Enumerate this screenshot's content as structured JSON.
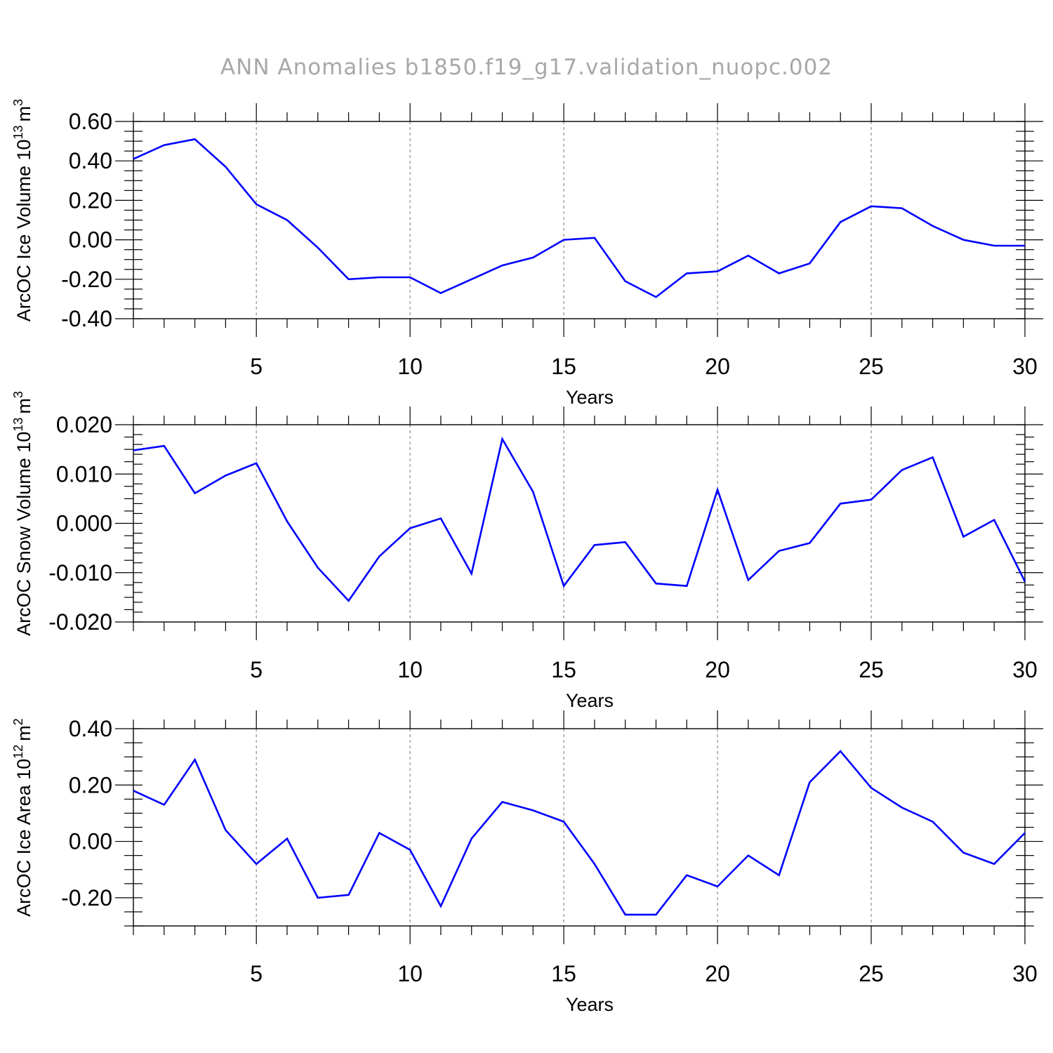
{
  "title": "ANN Anomalies b1850.f19_g17.validation_nuopc.002",
  "line_color": "#0000ff",
  "chart_data": [
    {
      "type": "line",
      "ylabel": "ArcOC Ice Volume 10",
      "ylabel_exp": "13",
      "ylabel_unit": "m",
      "ylabel_unit_exp": "3",
      "xlabel": "Years",
      "xlim": [
        1,
        30
      ],
      "ylim": [
        -0.4,
        0.6
      ],
      "yticks": [
        -0.4,
        -0.2,
        0.0,
        0.2,
        0.4,
        0.6
      ],
      "ytick_labels": [
        "-0.40",
        "-0.20",
        "0.00",
        "0.20",
        "0.40",
        "0.60"
      ],
      "ymirror_max": 0.6,
      "ymirror_minor": 0.05,
      "xticks": [
        5,
        10,
        15,
        20,
        25,
        30
      ],
      "xtick_labels": [
        "5",
        "10",
        "15",
        "20",
        "25",
        "30"
      ],
      "grid": "vertical dashed",
      "x": [
        1,
        2,
        3,
        4,
        5,
        6,
        7,
        8,
        9,
        10,
        11,
        12,
        13,
        14,
        15,
        16,
        17,
        18,
        19,
        20,
        21,
        22,
        23,
        24,
        25,
        26,
        27,
        28,
        29,
        30
      ],
      "values": [
        0.41,
        0.48,
        0.51,
        0.37,
        0.18,
        0.1,
        -0.04,
        -0.2,
        -0.19,
        -0.19,
        -0.27,
        -0.2,
        -0.13,
        -0.09,
        0.0,
        0.01,
        -0.21,
        -0.29,
        -0.17,
        -0.16,
        -0.08,
        -0.17,
        -0.12,
        0.09,
        0.17,
        0.16,
        0.07,
        0.0,
        -0.03,
        -0.03
      ]
    },
    {
      "type": "line",
      "ylabel": "ArcOC Snow Volume 10",
      "ylabel_exp": "13",
      "ylabel_unit": "m",
      "ylabel_unit_exp": "3",
      "xlabel": "Years",
      "xlim": [
        1,
        30
      ],
      "ylim": [
        -0.02,
        0.02
      ],
      "yticks": [
        -0.02,
        -0.01,
        0.0,
        0.01,
        0.02
      ],
      "ytick_labels": [
        "-0.020",
        "-0.010",
        "0.000",
        "0.010",
        "0.020"
      ],
      "ymirror_max": 0.02,
      "ymirror_minor": 0.002,
      "xticks": [
        5,
        10,
        15,
        20,
        25,
        30
      ],
      "xtick_labels": [
        "5",
        "10",
        "15",
        "20",
        "25",
        "30"
      ],
      "grid": "vertical dashed",
      "x": [
        1,
        2,
        3,
        4,
        5,
        6,
        7,
        8,
        9,
        10,
        11,
        12,
        13,
        14,
        15,
        16,
        17,
        18,
        19,
        20,
        21,
        22,
        23,
        24,
        25,
        26,
        27,
        28,
        29,
        30
      ],
      "values": [
        0.0148,
        0.0157,
        0.0061,
        0.0097,
        0.0122,
        0.0004,
        -0.009,
        -0.0157,
        -0.0067,
        -0.001,
        0.001,
        -0.0102,
        0.0171,
        0.0064,
        -0.0127,
        -0.0044,
        -0.0038,
        -0.0122,
        -0.0127,
        0.0068,
        -0.0115,
        -0.0056,
        -0.004,
        0.004,
        0.0048,
        0.0108,
        0.0134,
        -0.0027,
        0.0007,
        -0.0118
      ]
    },
    {
      "type": "line",
      "ylabel": "ArcOC Ice Area 10",
      "ylabel_exp": "12",
      "ylabel_unit": "m",
      "ylabel_unit_exp": "2",
      "xlabel": "Years",
      "xlim": [
        1,
        30
      ],
      "ylim": [
        -0.3,
        0.4
      ],
      "yticks": [
        -0.2,
        0.0,
        0.2,
        0.4
      ],
      "ytick_labels": [
        "-0.20",
        "0.00",
        "0.20",
        "0.40"
      ],
      "ymirror_max": 0.4,
      "ymirror_minor": 0.05,
      "xticks": [
        5,
        10,
        15,
        20,
        25,
        30
      ],
      "xtick_labels": [
        "5",
        "10",
        "15",
        "20",
        "25",
        "30"
      ],
      "grid": "vertical dashed",
      "x": [
        1,
        2,
        3,
        4,
        5,
        6,
        7,
        8,
        9,
        10,
        11,
        12,
        13,
        14,
        15,
        16,
        17,
        18,
        19,
        20,
        21,
        22,
        23,
        24,
        25,
        26,
        27,
        28,
        29,
        30
      ],
      "values": [
        0.18,
        0.13,
        0.29,
        0.04,
        -0.08,
        0.01,
        -0.2,
        -0.19,
        0.03,
        -0.03,
        -0.23,
        0.01,
        0.14,
        0.11,
        0.07,
        -0.08,
        -0.26,
        -0.26,
        -0.12,
        -0.16,
        -0.05,
        -0.12,
        0.21,
        0.32,
        0.19,
        0.12,
        0.07,
        -0.04,
        -0.08,
        0.03
      ]
    }
  ]
}
